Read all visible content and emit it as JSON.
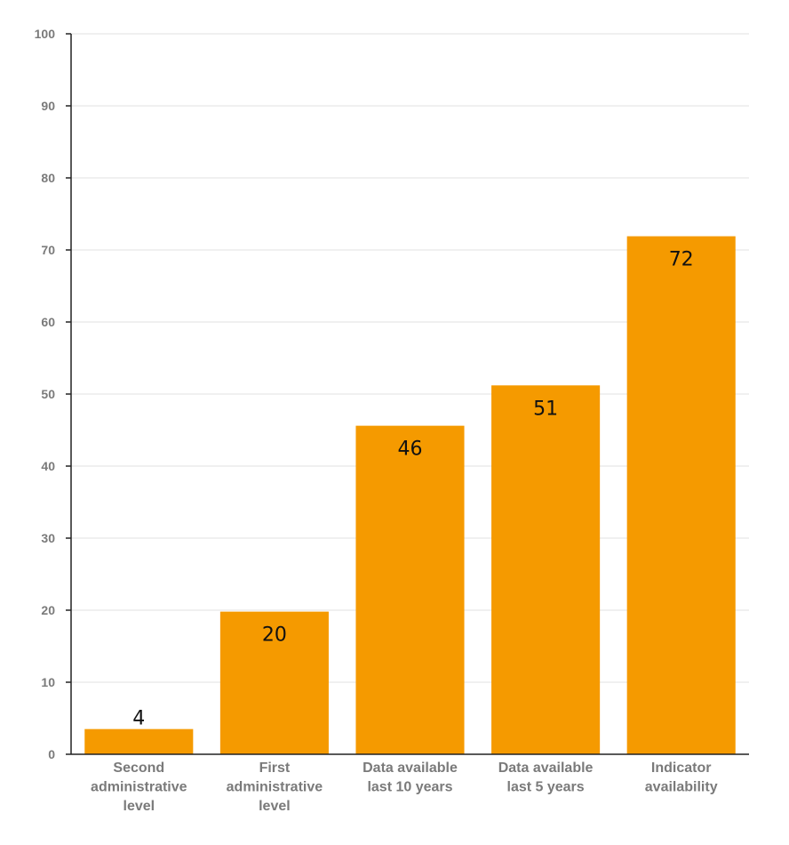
{
  "chart_data": {
    "type": "bar",
    "categories": [
      [
        "Second",
        "administrative",
        "level"
      ],
      [
        "First",
        "administrative",
        "level"
      ],
      [
        "Data available",
        "last 10 years"
      ],
      [
        "Data available",
        "last 5 years"
      ],
      [
        "Indicator",
        "availability"
      ]
    ],
    "values": [
      3.5,
      19.8,
      45.6,
      51.2,
      71.9
    ],
    "data_labels": [
      "4",
      "20",
      "46",
      "51",
      "72"
    ],
    "title": "",
    "xlabel": "",
    "ylabel": "",
    "ylim": [
      0,
      100
    ],
    "yticks": [
      0,
      10,
      20,
      30,
      40,
      50,
      60,
      70,
      80,
      90,
      100
    ],
    "grid": true,
    "legend": "none",
    "bar_color": "#f59a00"
  }
}
